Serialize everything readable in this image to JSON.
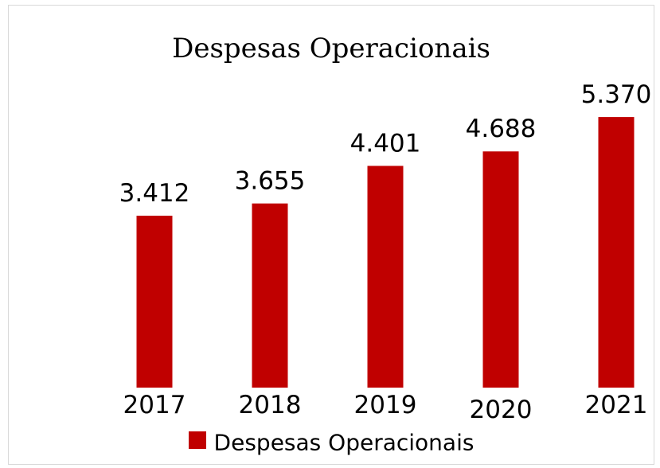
{
  "chart_data": {
    "type": "bar",
    "title": "Despesas Operacionais",
    "categories": [
      "2017",
      "2018",
      "2019",
      "2020",
      "2021"
    ],
    "series": [
      {
        "name": "Despesas Operacionais",
        "values": [
          3412,
          3655,
          4401,
          4688,
          5370
        ],
        "data_labels": [
          "3.412",
          "3.655",
          "4.401",
          "4.688",
          "5.370"
        ],
        "color": "#c00000"
      }
    ],
    "ylim": [
      0,
      6000
    ],
    "grid": false,
    "legend": "bottom"
  }
}
